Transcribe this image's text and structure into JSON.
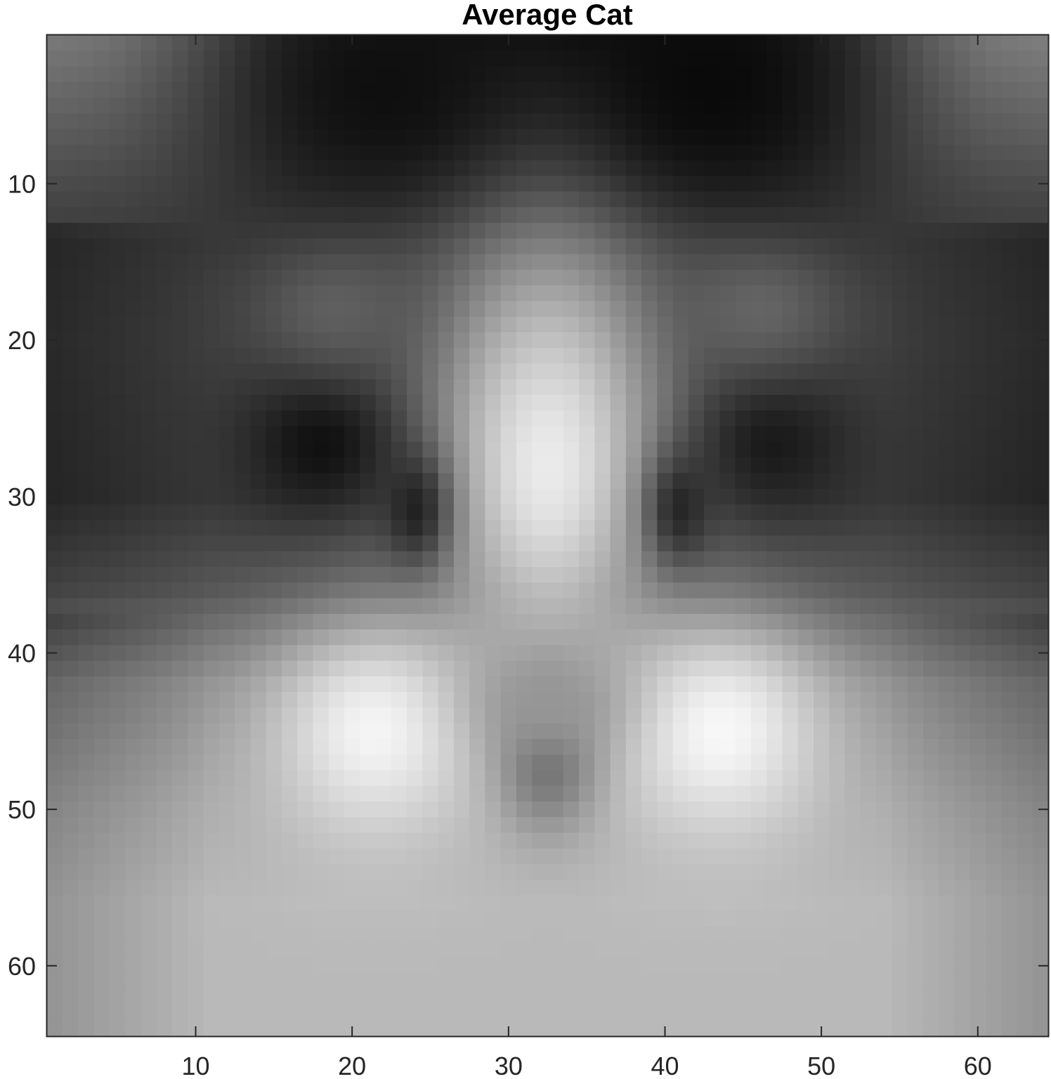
{
  "chart_data": {
    "type": "heatmap",
    "title": "Average Cat",
    "xlabel": "",
    "ylabel": "",
    "colormap": "gray",
    "rows": 64,
    "cols": 64,
    "xlim": [
      0.5,
      64.5
    ],
    "ylim": [
      0.5,
      64.5
    ],
    "y_direction": "reverse",
    "x_ticks": [
      10,
      20,
      30,
      40,
      50,
      60
    ],
    "x_tick_labels": [
      "10",
      "20",
      "30",
      "40",
      "50",
      "60"
    ],
    "y_ticks": [
      10,
      20,
      30,
      40,
      50,
      60
    ],
    "y_tick_labels": [
      "10",
      "20",
      "30",
      "40",
      "50",
      "60"
    ],
    "grid": false,
    "intensity_range": [
      0,
      255
    ],
    "features": {
      "background_top_col_profile": [
        120,
        115,
        100,
        80,
        55,
        40,
        28,
        18,
        12,
        10,
        14,
        20,
        30,
        45,
        70,
        100,
        120,
        125
      ],
      "background_by_row": [
        {
          "row": 1,
          "value": 60
        },
        {
          "row": 10,
          "value": 55
        },
        {
          "row": 20,
          "value": 60
        },
        {
          "row": 30,
          "value": 55
        },
        {
          "row": 36,
          "value": 85
        },
        {
          "row": 42,
          "value": 140
        },
        {
          "row": 50,
          "value": 170
        },
        {
          "row": 56,
          "value": 185
        },
        {
          "row": 64,
          "value": 185
        }
      ],
      "blobs": [
        {
          "name": "forehead",
          "col": 32.5,
          "row": 18,
          "sigma_col": 5.5,
          "sigma_row": 8,
          "value": 120
        },
        {
          "name": "muzzle",
          "col": 32.5,
          "row": 28,
          "sigma_col": 5,
          "sigma_row": 9,
          "value": 235
        },
        {
          "name": "left-eye",
          "col": 18,
          "row": 26.5,
          "sigma_col": 3.2,
          "sigma_row": 3.2,
          "value": 15
        },
        {
          "name": "right-eye",
          "col": 47,
          "row": 26.5,
          "sigma_col": 3.2,
          "sigma_row": 3.2,
          "value": 25
        },
        {
          "name": "left-eye-inner",
          "col": 24,
          "row": 31,
          "sigma_col": 1.5,
          "sigma_row": 2.6,
          "value": 30
        },
        {
          "name": "right-eye-inner",
          "col": 41,
          "row": 31,
          "sigma_col": 1.5,
          "sigma_row": 2.6,
          "value": 35
        },
        {
          "name": "left-cheek",
          "col": 21.5,
          "row": 45,
          "sigma_col": 5,
          "sigma_row": 5,
          "value": 245
        },
        {
          "name": "right-cheek",
          "col": 43.5,
          "row": 45,
          "sigma_col": 5,
          "sigma_row": 5,
          "value": 248
        },
        {
          "name": "nose",
          "col": 32.5,
          "row": 47,
          "sigma_col": 2.2,
          "sigma_row": 3,
          "value": 110
        },
        {
          "name": "nose-shadow",
          "col": 32.5,
          "row": 43,
          "sigma_col": 3.5,
          "sigma_row": 2.5,
          "value": 150
        },
        {
          "name": "left-ear-dark",
          "col": 22,
          "row": 4,
          "sigma_col": 7,
          "sigma_row": 6,
          "value": 15
        },
        {
          "name": "right-ear-dark",
          "col": 43,
          "row": 4,
          "sigma_col": 7,
          "sigma_row": 6,
          "value": 10
        },
        {
          "name": "left-brow",
          "col": 19,
          "row": 18,
          "sigma_col": 4,
          "sigma_row": 3,
          "value": 95
        },
        {
          "name": "right-brow",
          "col": 46,
          "row": 18,
          "sigma_col": 4,
          "sigma_row": 3,
          "value": 100
        }
      ]
    }
  }
}
